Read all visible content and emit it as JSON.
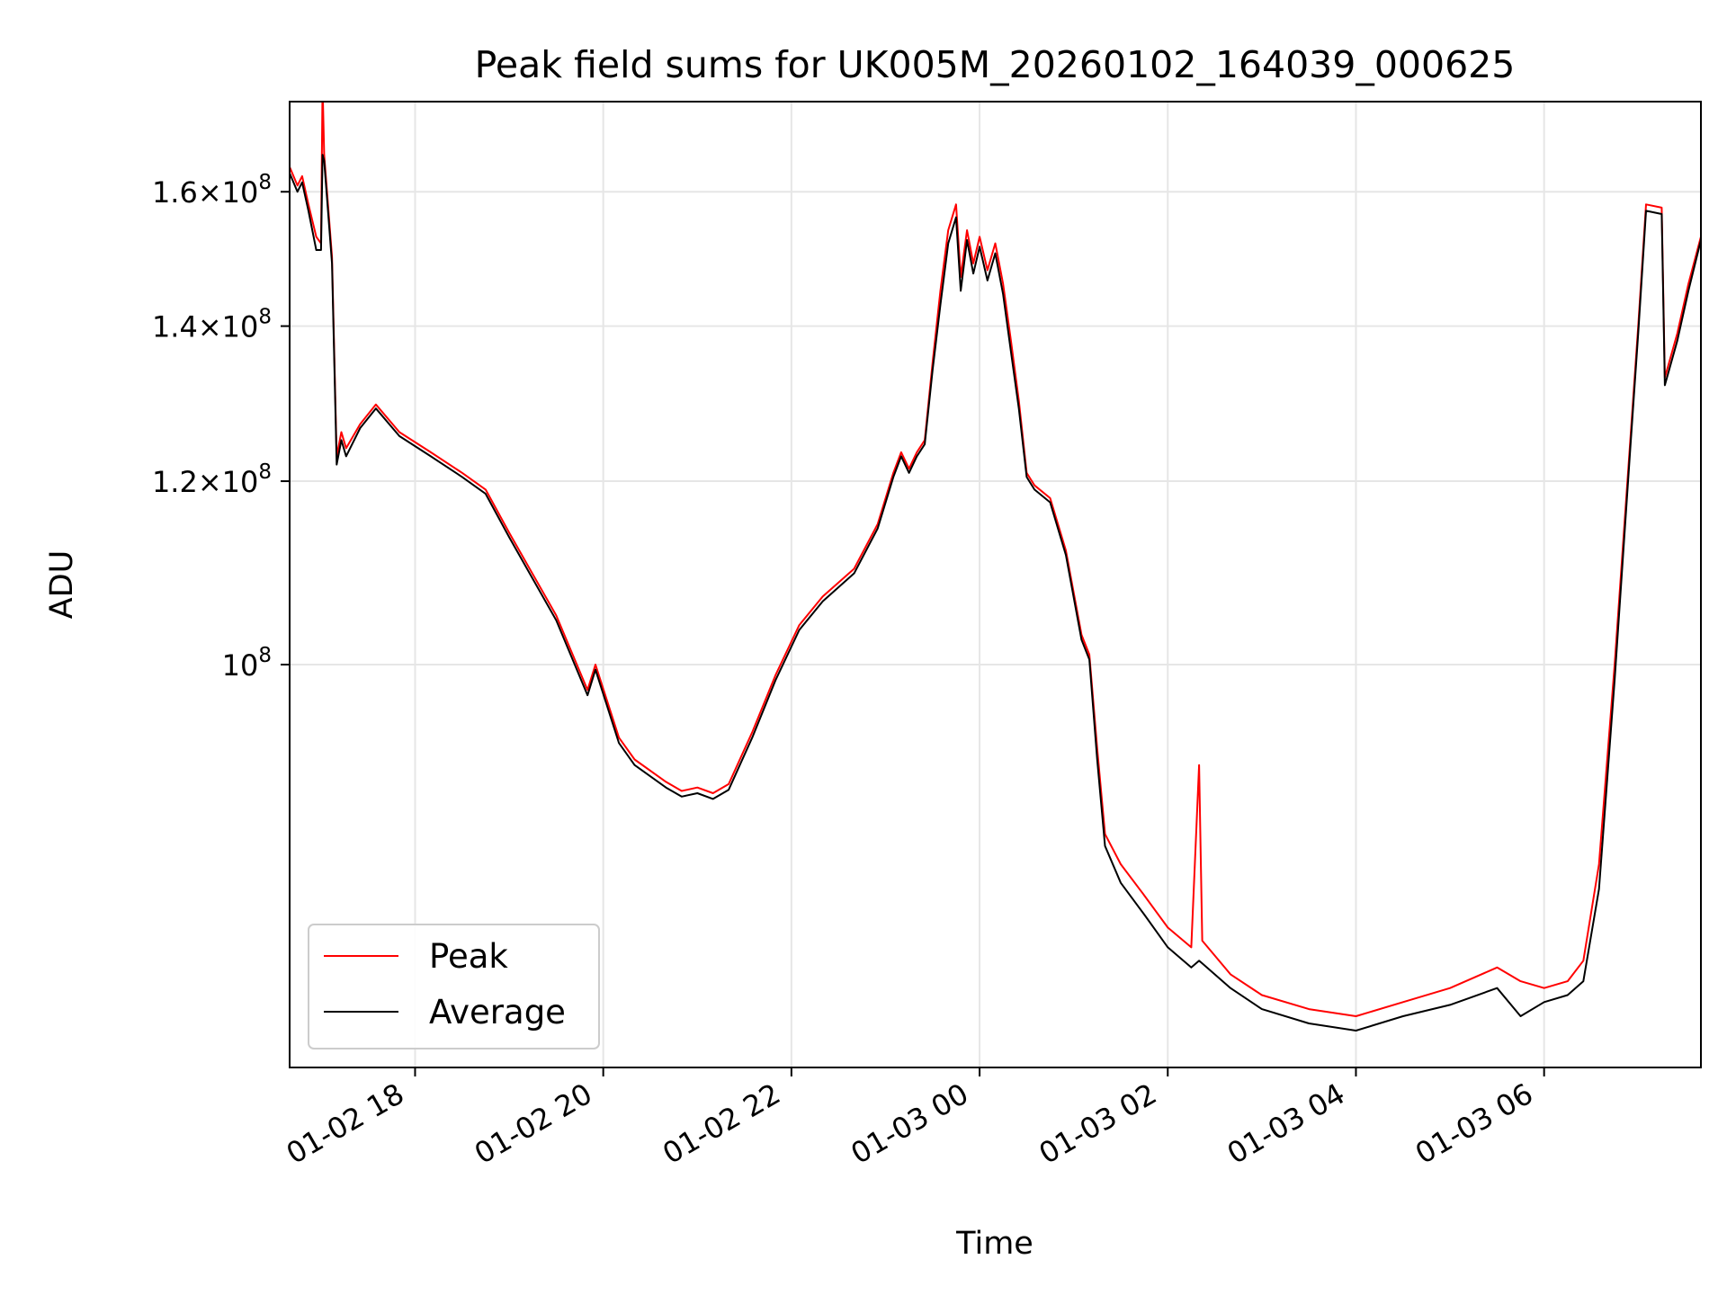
{
  "chart_data": {
    "type": "line",
    "title": "Peak field sums for UK005M_20260102_164039_000625",
    "xlabel": "Time",
    "ylabel": "ADU",
    "yscale": "log",
    "xlim": [
      "01-02 16:40",
      "01-03 07:40"
    ],
    "ylim": [
      67000000,
      175000000
    ],
    "grid": true,
    "legend_position": "lower-left",
    "x_ticks": [
      {
        "t": "01-02 18:00",
        "label": "01-02 18"
      },
      {
        "t": "01-02 20:00",
        "label": "01-02 20"
      },
      {
        "t": "01-02 22:00",
        "label": "01-02 22"
      },
      {
        "t": "01-03 00:00",
        "label": "01-03 00"
      },
      {
        "t": "01-03 02:00",
        "label": "01-03 02"
      },
      {
        "t": "01-03 04:00",
        "label": "01-03 04"
      },
      {
        "t": "01-03 06:00",
        "label": "01-03 06"
      }
    ],
    "y_ticks": [
      {
        "value": 160000000,
        "mantissa": "1.6",
        "base": "10",
        "exp": "8"
      },
      {
        "value": 140000000,
        "mantissa": "1.4",
        "base": "10",
        "exp": "8"
      },
      {
        "value": 120000000,
        "mantissa": "1.2",
        "base": "10",
        "exp": "8"
      },
      {
        "value": 100000000,
        "mantissa": "",
        "base": "10",
        "exp": "8"
      }
    ],
    "series": [
      {
        "name": "Peak",
        "color": "#ff0000",
        "points": [
          [
            "01-02 16:40",
            164000000
          ],
          [
            "01-02 16:45",
            161000000
          ],
          [
            "01-02 16:48",
            162500000
          ],
          [
            "01-02 16:52",
            158000000
          ],
          [
            "01-02 16:57",
            153000000
          ],
          [
            "01-02 17:00",
            152000000
          ],
          [
            "01-02 17:01",
            178000000
          ],
          [
            "01-02 17:02",
            166000000
          ],
          [
            "01-02 17:07",
            150000000
          ],
          [
            "01-02 17:10",
            123000000
          ],
          [
            "01-02 17:13",
            126000000
          ],
          [
            "01-02 17:16",
            124000000
          ],
          [
            "01-02 17:25",
            127000000
          ],
          [
            "01-02 17:35",
            129500000
          ],
          [
            "01-02 17:50",
            126000000
          ],
          [
            "01-02 18:10",
            123500000
          ],
          [
            "01-02 18:30",
            121000000
          ],
          [
            "01-02 18:45",
            119000000
          ],
          [
            "01-02 19:00",
            114000000
          ],
          [
            "01-02 19:30",
            105000000
          ],
          [
            "01-02 19:50",
            97500000
          ],
          [
            "01-02 19:55",
            100000000
          ],
          [
            "01-02 20:10",
            93000000
          ],
          [
            "01-02 20:20",
            91000000
          ],
          [
            "01-02 20:40",
            89000000
          ],
          [
            "01-02 20:50",
            88200000
          ],
          [
            "01-02 21:00",
            88500000
          ],
          [
            "01-02 21:10",
            88000000
          ],
          [
            "01-02 21:20",
            88800000
          ],
          [
            "01-02 21:35",
            93500000
          ],
          [
            "01-02 21:50",
            99000000
          ],
          [
            "01-02 22:05",
            104000000
          ],
          [
            "01-02 22:20",
            107000000
          ],
          [
            "01-02 22:40",
            110000000
          ],
          [
            "01-02 22:55",
            115000000
          ],
          [
            "01-02 23:05",
            121000000
          ],
          [
            "01-02 23:10",
            123500000
          ],
          [
            "01-02 23:15",
            121500000
          ],
          [
            "01-02 23:20",
            123500000
          ],
          [
            "01-02 23:25",
            125000000
          ],
          [
            "01-02 23:30",
            135000000
          ],
          [
            "01-02 23:35",
            145000000
          ],
          [
            "01-02 23:40",
            154000000
          ],
          [
            "01-02 23:45",
            158000000
          ],
          [
            "01-02 23:48",
            147000000
          ],
          [
            "01-02 23:52",
            154000000
          ],
          [
            "01-02 23:56",
            149000000
          ],
          [
            "01-03 00:00",
            153000000
          ],
          [
            "01-03 00:05",
            148000000
          ],
          [
            "01-03 00:10",
            152000000
          ],
          [
            "01-03 00:15",
            146000000
          ],
          [
            "01-03 00:20",
            138000000
          ],
          [
            "01-03 00:25",
            130000000
          ],
          [
            "01-03 00:30",
            121000000
          ],
          [
            "01-03 00:35",
            119500000
          ],
          [
            "01-03 00:45",
            118000000
          ],
          [
            "01-03 00:55",
            112000000
          ],
          [
            "01-03 01:05",
            103000000
          ],
          [
            "01-03 01:10",
            101000000
          ],
          [
            "01-03 01:15",
            92000000
          ],
          [
            "01-03 01:20",
            84500000
          ],
          [
            "01-03 01:30",
            82000000
          ],
          [
            "01-03 01:45",
            79500000
          ],
          [
            "01-03 02:00",
            77000000
          ],
          [
            "01-03 02:15",
            75500000
          ],
          [
            "01-03 02:20",
            90500000
          ],
          [
            "01-03 02:22",
            76000000
          ],
          [
            "01-03 02:40",
            73500000
          ],
          [
            "01-03 03:00",
            72000000
          ],
          [
            "01-03 03:30",
            71000000
          ],
          [
            "01-03 04:00",
            70500000
          ],
          [
            "01-03 04:30",
            71500000
          ],
          [
            "01-03 05:00",
            72500000
          ],
          [
            "01-03 05:30",
            74000000
          ],
          [
            "01-03 05:45",
            73000000
          ],
          [
            "01-03 06:00",
            72500000
          ],
          [
            "01-03 06:15",
            73000000
          ],
          [
            "01-03 06:25",
            74500000
          ],
          [
            "01-03 06:35",
            82000000
          ],
          [
            "01-03 06:45",
            100000000
          ],
          [
            "01-03 06:55",
            125000000
          ],
          [
            "01-03 07:00",
            140000000
          ],
          [
            "01-03 07:05",
            158000000
          ],
          [
            "01-03 07:15",
            157500000
          ],
          [
            "01-03 07:17",
            133000000
          ],
          [
            "01-03 07:25",
            139000000
          ],
          [
            "01-03 07:32",
            146000000
          ],
          [
            "01-03 07:40",
            153000000
          ]
        ]
      },
      {
        "name": "Average",
        "color": "#000000",
        "points": [
          [
            "01-02 16:40",
            163000000
          ],
          [
            "01-02 16:45",
            160000000
          ],
          [
            "01-02 16:48",
            161500000
          ],
          [
            "01-02 16:52",
            157000000
          ],
          [
            "01-02 16:57",
            151000000
          ],
          [
            "01-02 17:00",
            151000000
          ],
          [
            "01-02 17:01",
            166000000
          ],
          [
            "01-02 17:02",
            165000000
          ],
          [
            "01-02 17:07",
            149000000
          ],
          [
            "01-02 17:10",
            122000000
          ],
          [
            "01-02 17:13",
            125000000
          ],
          [
            "01-02 17:16",
            123000000
          ],
          [
            "01-02 17:25",
            126500000
          ],
          [
            "01-02 17:35",
            129000000
          ],
          [
            "01-02 17:50",
            125500000
          ],
          [
            "01-02 18:10",
            123000000
          ],
          [
            "01-02 18:30",
            120500000
          ],
          [
            "01-02 18:45",
            118500000
          ],
          [
            "01-02 19:00",
            113500000
          ],
          [
            "01-02 19:30",
            104500000
          ],
          [
            "01-02 19:50",
            97000000
          ],
          [
            "01-02 19:55",
            99500000
          ],
          [
            "01-02 20:10",
            92500000
          ],
          [
            "01-02 20:20",
            90500000
          ],
          [
            "01-02 20:40",
            88500000
          ],
          [
            "01-02 20:50",
            87700000
          ],
          [
            "01-02 21:00",
            88000000
          ],
          [
            "01-02 21:10",
            87500000
          ],
          [
            "01-02 21:20",
            88300000
          ],
          [
            "01-02 21:35",
            93000000
          ],
          [
            "01-02 21:50",
            98500000
          ],
          [
            "01-02 22:05",
            103500000
          ],
          [
            "01-02 22:20",
            106500000
          ],
          [
            "01-02 22:40",
            109500000
          ],
          [
            "01-02 22:55",
            114500000
          ],
          [
            "01-02 23:05",
            120500000
          ],
          [
            "01-02 23:10",
            123000000
          ],
          [
            "01-02 23:15",
            121000000
          ],
          [
            "01-02 23:20",
            123000000
          ],
          [
            "01-02 23:25",
            124500000
          ],
          [
            "01-02 23:30",
            134000000
          ],
          [
            "01-02 23:35",
            143000000
          ],
          [
            "01-02 23:40",
            152000000
          ],
          [
            "01-02 23:45",
            156000000
          ],
          [
            "01-02 23:48",
            145000000
          ],
          [
            "01-02 23:52",
            152500000
          ],
          [
            "01-02 23:56",
            147500000
          ],
          [
            "01-03 00:00",
            151500000
          ],
          [
            "01-03 00:05",
            146500000
          ],
          [
            "01-03 00:10",
            150500000
          ],
          [
            "01-03 00:15",
            144500000
          ],
          [
            "01-03 00:20",
            136500000
          ],
          [
            "01-03 00:25",
            129000000
          ],
          [
            "01-03 00:30",
            120500000
          ],
          [
            "01-03 00:35",
            119000000
          ],
          [
            "01-03 00:45",
            117500000
          ],
          [
            "01-03 00:55",
            111500000
          ],
          [
            "01-03 01:05",
            102500000
          ],
          [
            "01-03 01:10",
            100500000
          ],
          [
            "01-03 01:15",
            91000000
          ],
          [
            "01-03 01:20",
            83500000
          ],
          [
            "01-03 01:30",
            80500000
          ],
          [
            "01-03 01:45",
            78000000
          ],
          [
            "01-03 02:00",
            75500000
          ],
          [
            "01-03 02:15",
            74000000
          ],
          [
            "01-03 02:20",
            74500000
          ],
          [
            "01-03 02:22",
            74300000
          ],
          [
            "01-03 02:40",
            72500000
          ],
          [
            "01-03 03:00",
            71000000
          ],
          [
            "01-03 03:30",
            70000000
          ],
          [
            "01-03 04:00",
            69500000
          ],
          [
            "01-03 04:30",
            70500000
          ],
          [
            "01-03 05:00",
            71300000
          ],
          [
            "01-03 05:30",
            72500000
          ],
          [
            "01-03 05:45",
            70500000
          ],
          [
            "01-03 06:00",
            71500000
          ],
          [
            "01-03 06:15",
            72000000
          ],
          [
            "01-03 06:25",
            73000000
          ],
          [
            "01-03 06:35",
            80000000
          ],
          [
            "01-03 06:45",
            98500000
          ],
          [
            "01-03 06:55",
            124000000
          ],
          [
            "01-03 07:00",
            139000000
          ],
          [
            "01-03 07:05",
            157000000
          ],
          [
            "01-03 07:15",
            156500000
          ],
          [
            "01-03 07:17",
            132000000
          ],
          [
            "01-03 07:25",
            138000000
          ],
          [
            "01-03 07:32",
            145000000
          ],
          [
            "01-03 07:40",
            152500000
          ]
        ]
      }
    ]
  }
}
